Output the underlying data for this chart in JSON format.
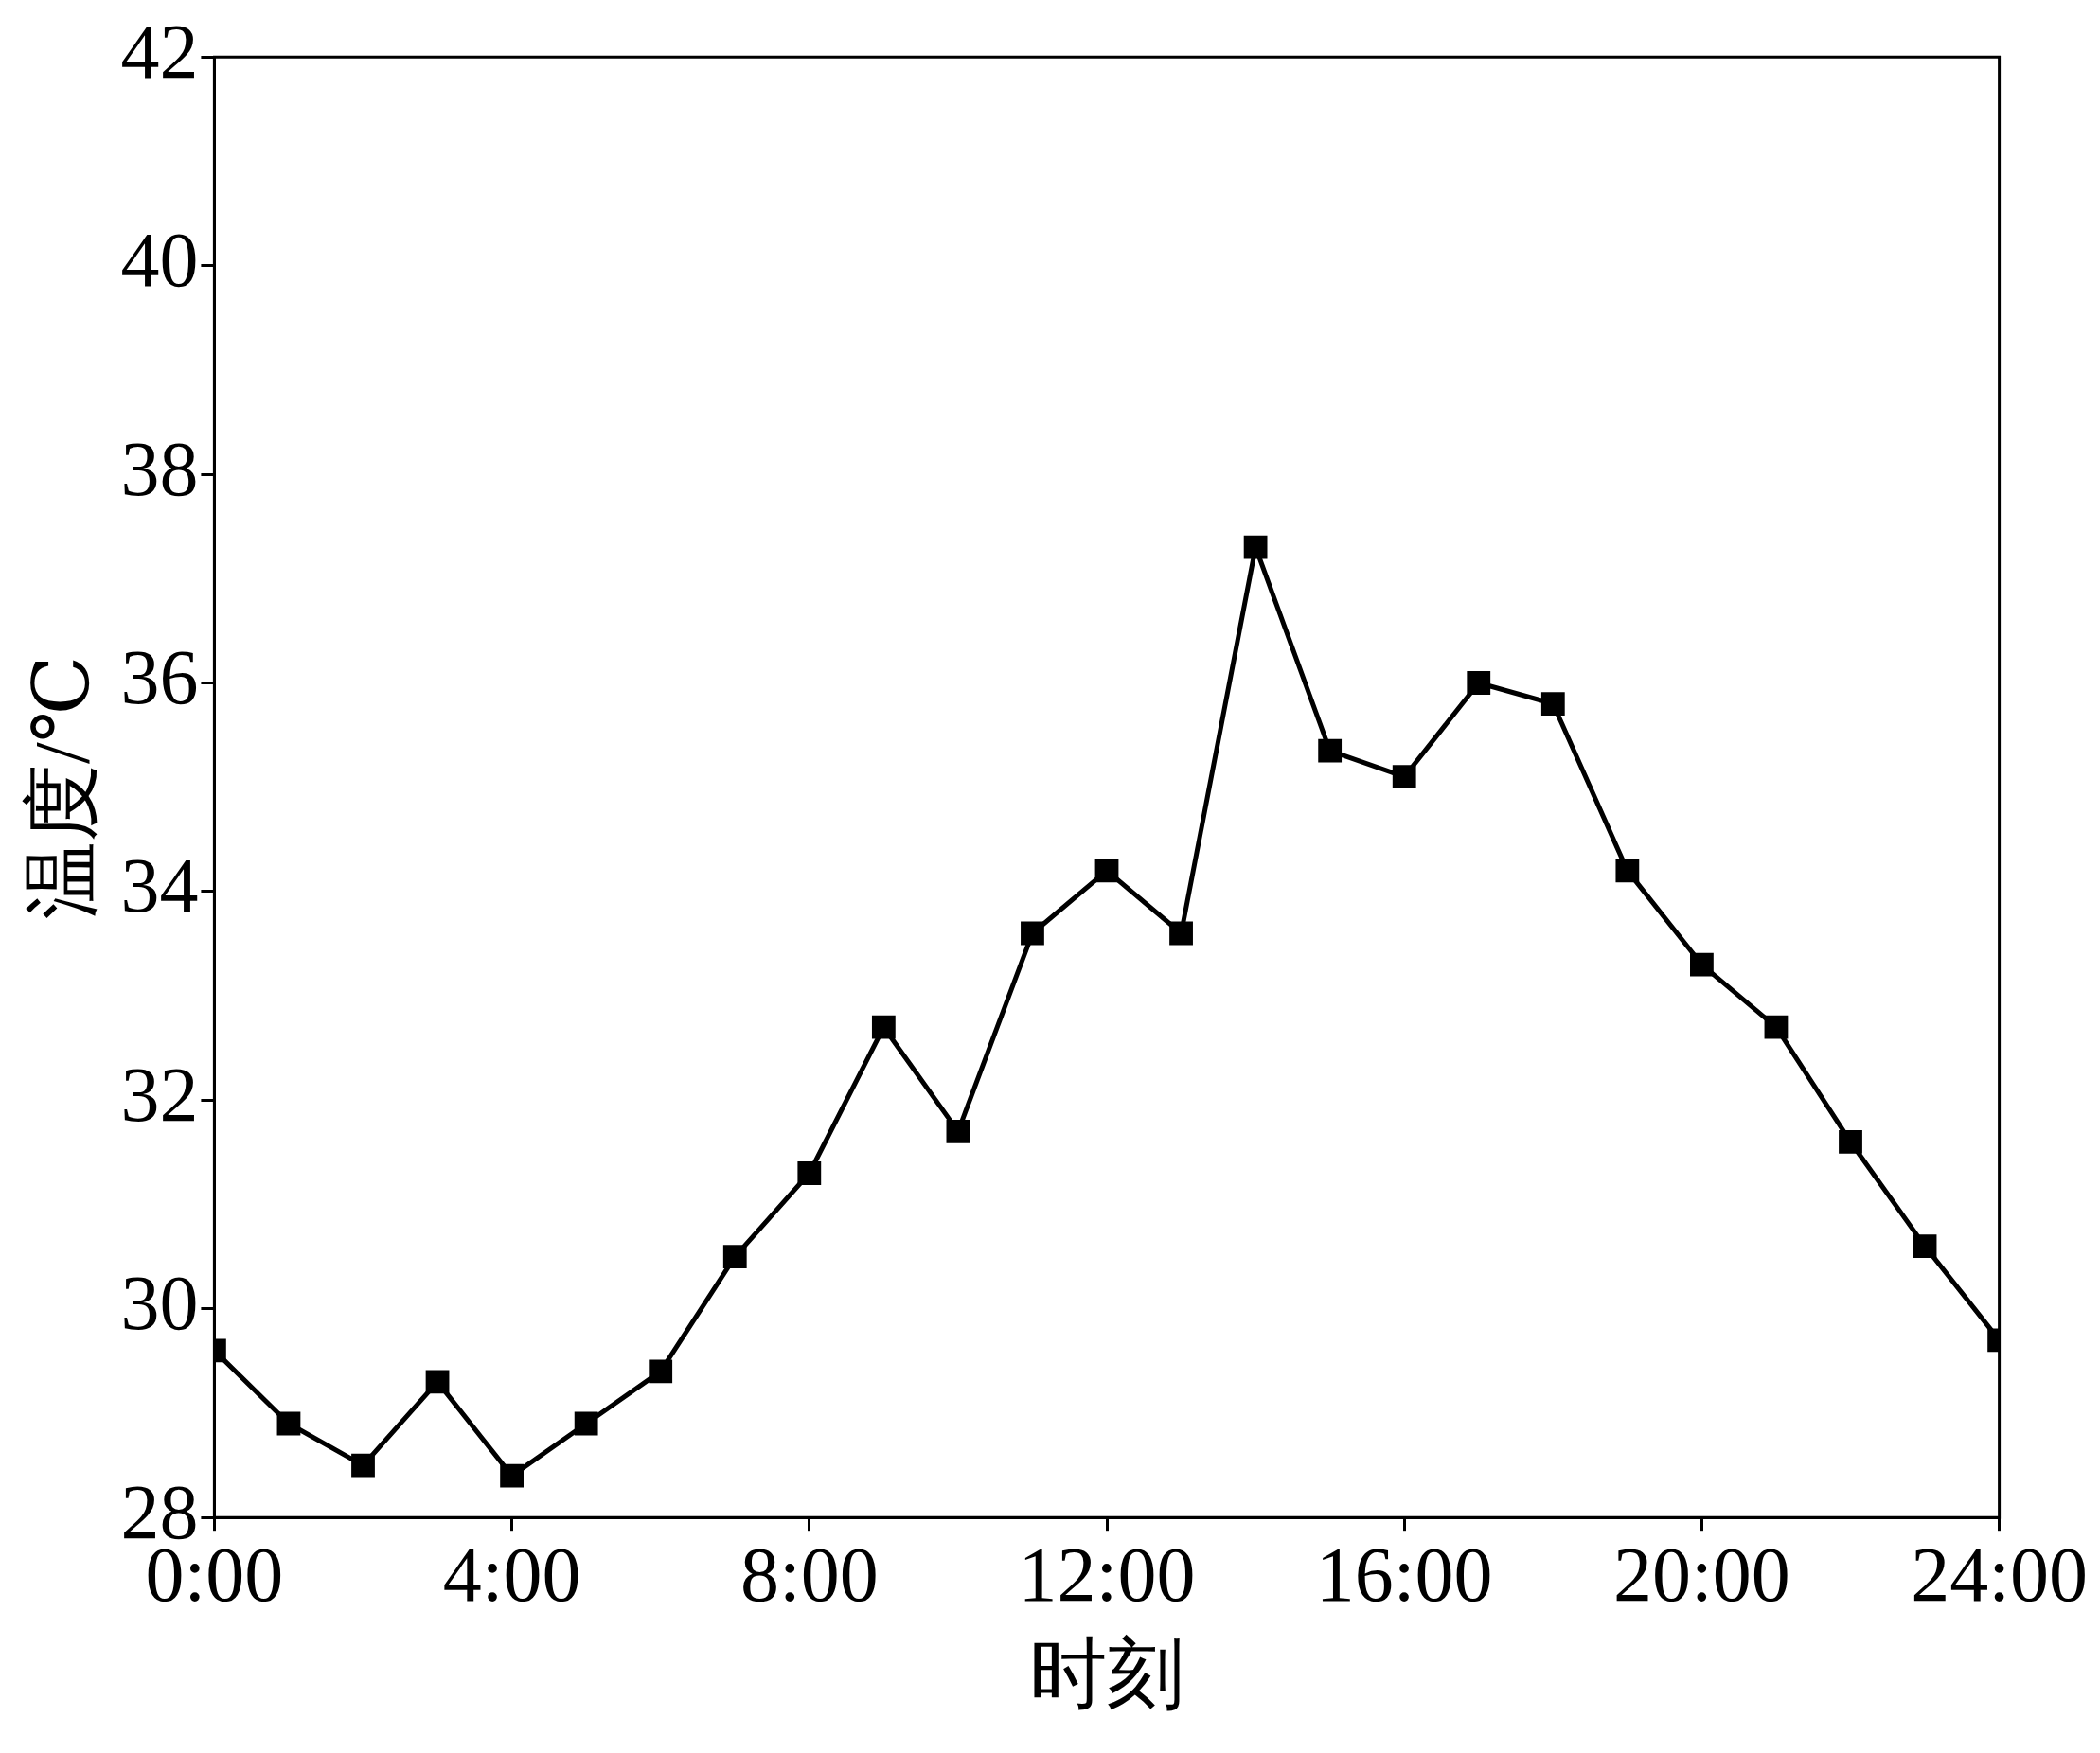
{
  "chart_data": {
    "type": "line",
    "xlabel": "时刻",
    "ylabel": "温度/℃",
    "x": [
      0,
      1,
      2,
      3,
      4,
      5,
      6,
      7,
      8,
      9,
      10,
      11,
      12,
      13,
      14,
      15,
      16,
      17,
      18,
      19,
      20,
      21,
      22,
      23,
      24
    ],
    "series": [
      {
        "color": "#000000",
        "values": [
          29.6,
          28.9,
          28.5,
          29.3,
          28.4,
          28.9,
          29.4,
          30.5,
          31.3,
          32.7,
          31.7,
          33.6,
          34.2,
          33.6,
          37.3,
          35.35,
          35.1,
          36.0,
          35.8,
          34.2,
          33.3,
          32.7,
          31.6,
          30.6,
          29.7
        ]
      }
    ],
    "xlim": [
      0,
      24
    ],
    "xticks": [
      {
        "value": 0,
        "label": "0:00"
      },
      {
        "value": 4,
        "label": "4:00"
      },
      {
        "value": 8,
        "label": "8:00"
      },
      {
        "value": 12,
        "label": "12:00"
      },
      {
        "value": 16,
        "label": "16:00"
      },
      {
        "value": 20,
        "label": "20:00"
      },
      {
        "value": 24,
        "label": "24:00"
      }
    ],
    "ylim": [
      28,
      42
    ],
    "yticks": [
      28,
      30,
      32,
      34,
      36,
      38,
      40,
      42
    ],
    "grid": false,
    "legend": false,
    "marker": "square",
    "line_style": "solid"
  }
}
